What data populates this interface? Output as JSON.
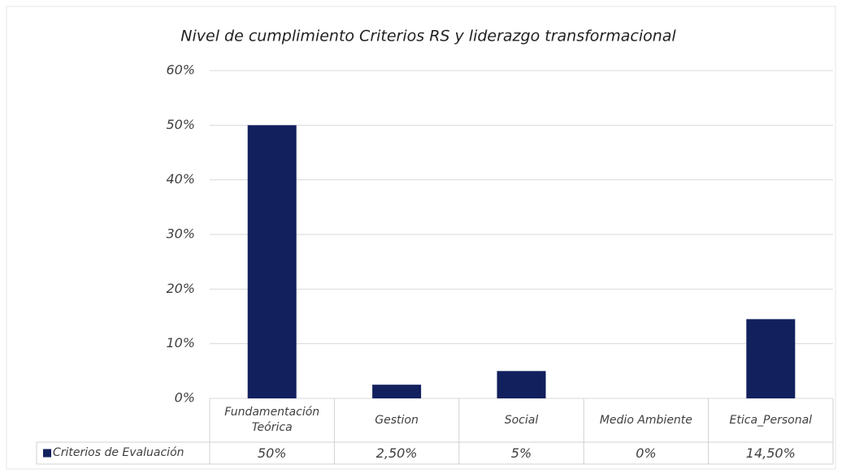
{
  "chart_data": {
    "type": "bar",
    "title": "Nivel de cumplimiento Criterios RS y liderazgo transformacional",
    "categories": [
      "Fundamentación Teórica",
      "Gestion",
      "Social",
      "Medio Ambiente",
      "Etica_Personal"
    ],
    "series": [
      {
        "name": "Criterios de Evaluación",
        "color": "#12205e",
        "values": [
          50,
          2.5,
          5,
          0,
          14.5
        ],
        "value_labels": [
          "50%",
          "2,50%",
          "5%",
          "0%",
          "14,50%"
        ]
      }
    ],
    "ylim": [
      0,
      60
    ],
    "yticks": [
      {
        "value": 0,
        "label": "0%"
      },
      {
        "value": 10,
        "label": "10%"
      },
      {
        "value": 20,
        "label": "20%"
      },
      {
        "value": 30,
        "label": "30%"
      },
      {
        "value": 40,
        "label": "40%"
      },
      {
        "value": 50,
        "label": "50%"
      },
      {
        "value": 60,
        "label": "60%"
      }
    ],
    "grid": true
  }
}
